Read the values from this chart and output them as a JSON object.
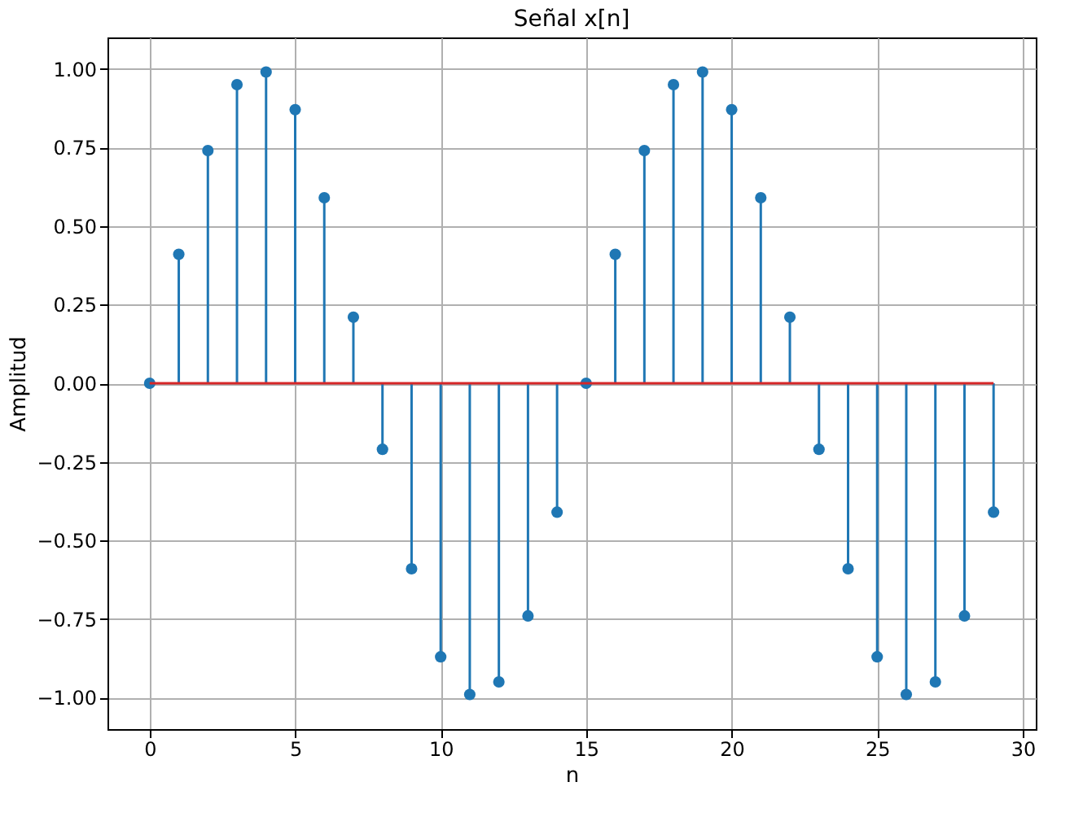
{
  "chart_data": {
    "type": "lollipop",
    "title": "Señal x[n]",
    "xlabel": "n",
    "ylabel": "Amplitud",
    "x": [
      0,
      1,
      2,
      3,
      4,
      5,
      6,
      7,
      8,
      9,
      10,
      11,
      12,
      13,
      14,
      15,
      16,
      17,
      18,
      19,
      20,
      21,
      22,
      23,
      24,
      25,
      26,
      27,
      28,
      29
    ],
    "series": [
      {
        "color": "#1f77b4",
        "values": [
          0,
          0.41,
          0.74,
          0.95,
          0.99,
          0.87,
          0.59,
          0.21,
          -0.21,
          -0.59,
          -0.87,
          -0.99,
          -0.95,
          -0.74,
          -0.41,
          0,
          0.41,
          0.74,
          0.95,
          0.99,
          0.87,
          0.59,
          0.21,
          -0.21,
          -0.59,
          -0.87,
          -0.99,
          -0.95,
          -0.74,
          -0.41
        ]
      }
    ],
    "xlim": [
      -1.45,
      30.45
    ],
    "ylim": [
      -1.1,
      1.1
    ],
    "xticks": [
      0,
      5,
      10,
      15,
      20,
      25,
      30
    ],
    "yticks": [
      {
        "value": -1,
        "label": "−1.00"
      },
      {
        "value": -0.75,
        "label": "−0.75"
      },
      {
        "value": -0.5,
        "label": "−0.50"
      },
      {
        "value": -0.25,
        "label": "−0.25"
      },
      {
        "value": 0,
        "label": "0.00"
      },
      {
        "value": 0.25,
        "label": "0.25"
      },
      {
        "value": 0.5,
        "label": "0.50"
      },
      {
        "value": 0.75,
        "label": "0.75"
      },
      {
        "value": 1,
        "label": "1.00"
      }
    ],
    "ref_lines": [
      {
        "axis": "y",
        "value": 0,
        "color": "#d62728"
      }
    ],
    "grid": true,
    "marker": "circle"
  }
}
